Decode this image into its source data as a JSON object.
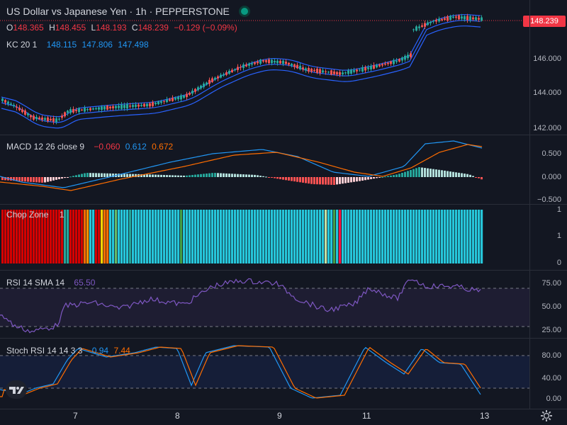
{
  "title": "US Dollar vs Japanese Yen · 1h · PEPPERSTONE",
  "ohlc": {
    "o_label": "O",
    "o": "148.365",
    "h_label": "H",
    "h": "148.455",
    "l_label": "L",
    "l": "148.193",
    "c_label": "C",
    "c": "148.239",
    "change": "−0.129 (−0.09%)"
  },
  "kc": {
    "label": "KC 20 1",
    "v1": "148.115",
    "v2": "147.806",
    "v3": "147.498"
  },
  "price_badge": "148.239",
  "price_axis": [
    "146.000",
    "144.000",
    "142.000"
  ],
  "macd": {
    "label": "MACD 12 26 close 9",
    "hist": "−0.060",
    "macd": "0.612",
    "signal": "0.672",
    "axis": [
      "0.500",
      "0.000",
      "−0.500"
    ]
  },
  "chop": {
    "label": "Chop Zone",
    "value": "1",
    "axis": [
      "1",
      "1",
      "0"
    ]
  },
  "rsi": {
    "label": "RSI 14 SMA 14",
    "value": "65.50",
    "axis": [
      "75.00",
      "50.00",
      "25.00"
    ]
  },
  "stoch": {
    "label": "Stoch RSI 14 14 3 3",
    "k": "0.94",
    "d": "7.44",
    "axis": [
      "80.00",
      "40.00",
      "0.00"
    ]
  },
  "x_axis": [
    "7",
    "8",
    "9",
    "11",
    "13"
  ],
  "colors": {
    "up": "#26a69a",
    "down": "#ef5350",
    "band": "#2962ff",
    "macd": "#2196f3",
    "signal": "#ff6d00",
    "rsi": "#7e57c2",
    "chop_teal": "#26c6da"
  }
}
